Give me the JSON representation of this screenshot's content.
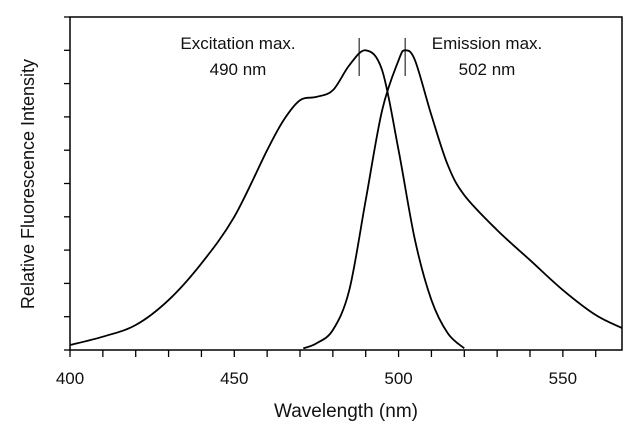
{
  "chart_data": {
    "type": "line",
    "title": "",
    "xlabel": "Wavelength (nm)",
    "ylabel": "Relative Fluorescence Intensity",
    "xlim": [
      400,
      568
    ],
    "ylim": [
      0,
      1
    ],
    "xticks": [
      400,
      450,
      500,
      550
    ],
    "xminor_step": 10,
    "yticks_count": 10,
    "ytick_labels_shown": false,
    "grid": false,
    "line_color": "#000000",
    "series": [
      {
        "x": [
          400,
          410,
          420,
          430,
          440,
          450,
          460,
          465,
          470,
          475,
          480,
          485,
          490,
          495,
          500,
          505,
          510,
          515,
          520
        ],
        "y": [
          0.015,
          0.04,
          0.075,
          0.15,
          0.26,
          0.4,
          0.6,
          0.69,
          0.75,
          0.76,
          0.78,
          0.855,
          0.9,
          0.84,
          0.6,
          0.33,
          0.15,
          0.05,
          0.005
        ]
      },
      {
        "x": [
          471,
          475,
          480,
          485,
          490,
          495,
          500,
          502,
          505,
          510,
          515,
          520,
          530,
          540,
          550,
          560,
          568
        ],
        "y": [
          0.005,
          0.02,
          0.06,
          0.18,
          0.45,
          0.72,
          0.87,
          0.9,
          0.87,
          0.705,
          0.555,
          0.465,
          0.36,
          0.27,
          0.18,
          0.105,
          0.066
        ]
      }
    ],
    "annotations": [
      {
        "x": 488,
        "line1": "Excitation max.",
        "line2": "490 nm"
      },
      {
        "x": 502,
        "line1": "Emission max.",
        "line2": "502 nm"
      }
    ]
  }
}
